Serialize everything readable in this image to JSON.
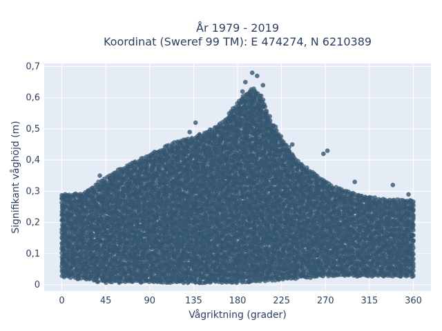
{
  "chart_data": {
    "type": "scatter",
    "title_line1": "År 1979 - 2019",
    "title_line2": "Koordinat (Sweref 99 TM): E 474274, N 6210389",
    "xlabel": "Vågriktning (grader)",
    "ylabel": "Signifikant våghöjd (m)",
    "xlim": [
      -18,
      378
    ],
    "ylim": [
      -0.02,
      0.71
    ],
    "x_ticks": [
      0,
      45,
      90,
      135,
      180,
      225,
      270,
      315,
      360
    ],
    "x_tick_labels": [
      "0",
      "45",
      "90",
      "135",
      "180",
      "225",
      "270",
      "315",
      "360"
    ],
    "y_ticks": [
      0,
      0.1,
      0.2,
      0.3,
      0.4,
      0.5,
      0.6,
      0.7
    ],
    "y_tick_labels": [
      "0",
      "0,1",
      "0,2",
      "0,3",
      "0,4",
      "0,5",
      "0,6",
      "0,7"
    ],
    "grid": true,
    "marker_color": "#34566f",
    "plot_bg": "#e5ecf6",
    "envelope_upper": [
      [
        0,
        0.29
      ],
      [
        20,
        0.29
      ],
      [
        45,
        0.34
      ],
      [
        60,
        0.37
      ],
      [
        80,
        0.4
      ],
      [
        100,
        0.43
      ],
      [
        120,
        0.46
      ],
      [
        135,
        0.47
      ],
      [
        150,
        0.49
      ],
      [
        165,
        0.52
      ],
      [
        175,
        0.56
      ],
      [
        185,
        0.6
      ],
      [
        195,
        0.63
      ],
      [
        205,
        0.6
      ],
      [
        215,
        0.52
      ],
      [
        225,
        0.47
      ],
      [
        240,
        0.4
      ],
      [
        260,
        0.35
      ],
      [
        280,
        0.31
      ],
      [
        300,
        0.29
      ],
      [
        330,
        0.27
      ],
      [
        360,
        0.27
      ]
    ],
    "envelope_lower": [
      [
        0,
        0.03
      ],
      [
        45,
        0.01
      ],
      [
        90,
        0.01
      ],
      [
        135,
        0.01
      ],
      [
        180,
        0.01
      ],
      [
        225,
        0.02
      ],
      [
        270,
        0.03
      ],
      [
        315,
        0.03
      ],
      [
        360,
        0.03
      ]
    ],
    "outliers": [
      [
        188,
        0.65
      ],
      [
        195,
        0.68
      ],
      [
        200,
        0.67
      ],
      [
        206,
        0.64
      ],
      [
        185,
        0.62
      ],
      [
        131,
        0.49
      ],
      [
        137,
        0.52
      ],
      [
        175,
        0.54
      ],
      [
        230,
        0.43
      ],
      [
        236,
        0.45
      ],
      [
        268,
        0.42
      ],
      [
        272,
        0.43
      ],
      [
        339,
        0.32
      ],
      [
        355,
        0.29
      ],
      [
        39,
        0.35
      ],
      [
        300,
        0.33
      ]
    ]
  }
}
